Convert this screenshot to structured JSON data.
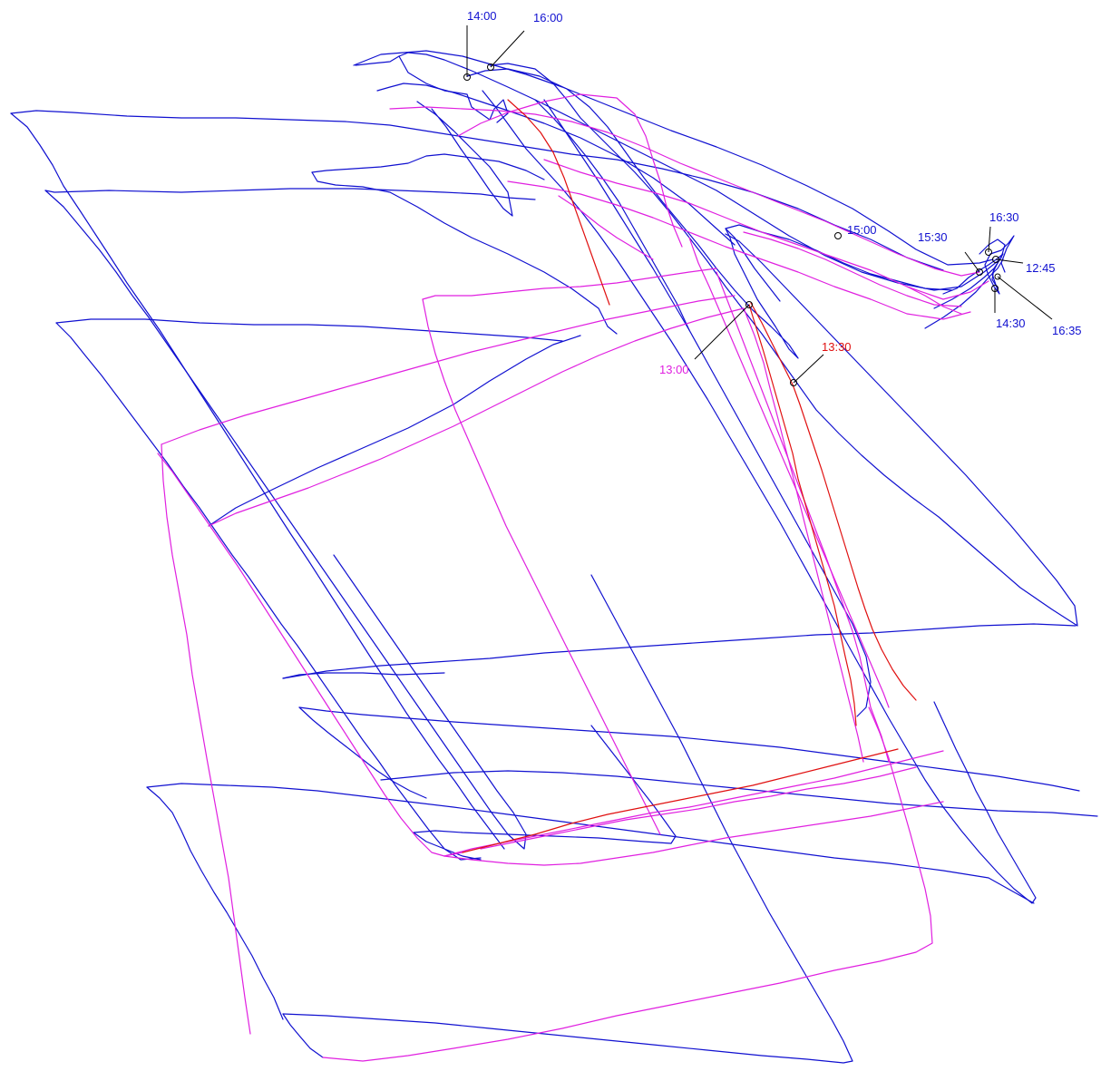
{
  "colors": {
    "background": "#ffffff",
    "track_primary": "#1010d0",
    "track_secondary": "#e020e0",
    "track_highlight": "#e01010",
    "marker": "#000000"
  },
  "tracks": [
    {
      "name": "blue-track",
      "color_key": "track_primary"
    },
    {
      "name": "magenta-track",
      "color_key": "track_secondary"
    },
    {
      "name": "red-track",
      "color_key": "track_highlight"
    }
  ],
  "time_labels": [
    {
      "id": "t1400",
      "text": "14:00",
      "color_key": "track_primary"
    },
    {
      "id": "t1600",
      "text": "16:00",
      "color_key": "track_primary"
    },
    {
      "id": "t1500",
      "text": "15:00",
      "color_key": "track_primary"
    },
    {
      "id": "t1630",
      "text": "16:30",
      "color_key": "track_primary"
    },
    {
      "id": "t1530",
      "text": "15:30",
      "color_key": "track_primary"
    },
    {
      "id": "t1245",
      "text": "12:45",
      "color_key": "track_primary"
    },
    {
      "id": "t1430",
      "text": "14:30",
      "color_key": "track_primary"
    },
    {
      "id": "t1635",
      "text": "16:35",
      "color_key": "track_primary"
    },
    {
      "id": "t1300",
      "text": "13:00",
      "color_key": "track_secondary"
    },
    {
      "id": "t1330",
      "text": "13:30",
      "color_key": "track_highlight"
    }
  ]
}
